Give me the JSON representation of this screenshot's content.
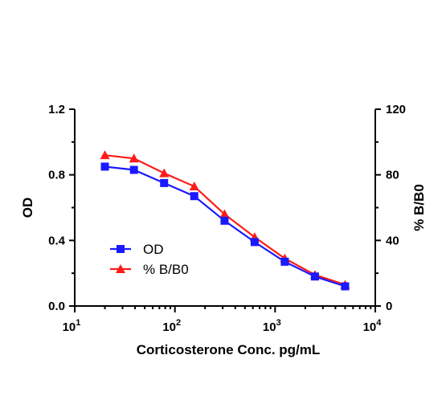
{
  "chart_data": {
    "type": "line",
    "xlabel": "Corticosterone Conc. pg/mL",
    "ylabel_left": "OD",
    "ylabel_right": "% B/B0",
    "x_scale": "log",
    "xlim": [
      10,
      10000
    ],
    "x_ticks": [
      {
        "value": 10,
        "base": "10",
        "exp": "1"
      },
      {
        "value": 100,
        "base": "10",
        "exp": "2"
      },
      {
        "value": 1000,
        "base": "10",
        "exp": "3"
      },
      {
        "value": 10000,
        "base": "10",
        "exp": "4"
      }
    ],
    "ylim_left": [
      0,
      1.2
    ],
    "y_ticks_left": [
      "0.0",
      "0.4",
      "0.8",
      "1.2"
    ],
    "ylim_right": [
      0,
      120
    ],
    "y_ticks_right": [
      "0",
      "40",
      "80",
      "120"
    ],
    "grid": false,
    "legend_position": "center-left",
    "x": [
      20,
      39,
      78,
      156,
      313,
      625,
      1250,
      2500,
      5000
    ],
    "series": [
      {
        "name": "OD",
        "axis": "left",
        "color": "#1a1aff",
        "marker": "square",
        "values": [
          0.85,
          0.83,
          0.75,
          0.67,
          0.52,
          0.39,
          0.27,
          0.18,
          0.12
        ]
      },
      {
        "name": "% B/B0",
        "axis": "right",
        "color": "#ff1a1a",
        "marker": "triangle",
        "values": [
          92,
          90,
          81,
          73,
          56,
          42,
          29,
          19,
          13
        ]
      }
    ]
  }
}
